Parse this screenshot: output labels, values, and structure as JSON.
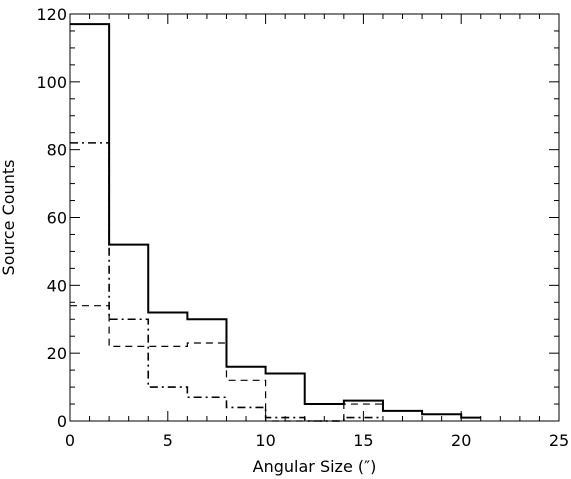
{
  "chart_data": {
    "type": "histogram-step",
    "xlabel": "Angular Size (″)",
    "ylabel": "Source Counts",
    "xlim": [
      0,
      25
    ],
    "ylim": [
      0,
      120
    ],
    "xticks": [
      0,
      5,
      10,
      15,
      20,
      25
    ],
    "yticks": [
      0,
      20,
      40,
      60,
      80,
      100,
      120
    ],
    "grid": false,
    "series": [
      {
        "linestyle": "solid",
        "bin_edges": [
          0,
          2,
          4,
          6,
          8,
          10,
          12,
          14,
          16,
          18,
          20,
          21
        ],
        "values": [
          117,
          52,
          32,
          30,
          16,
          14,
          5,
          6,
          3,
          2,
          1
        ]
      },
      {
        "linestyle": "dashed",
        "bin_edges": [
          0,
          2,
          4,
          6,
          8,
          10,
          12,
          14,
          16
        ],
        "values": [
          34,
          22,
          22,
          23,
          12,
          0,
          0,
          5
        ]
      },
      {
        "linestyle": "dashdot",
        "bin_edges": [
          0,
          2,
          4,
          6,
          8,
          10,
          12,
          14,
          16
        ],
        "values": [
          82,
          30,
          10,
          7,
          4,
          1,
          0,
          1
        ]
      }
    ]
  }
}
